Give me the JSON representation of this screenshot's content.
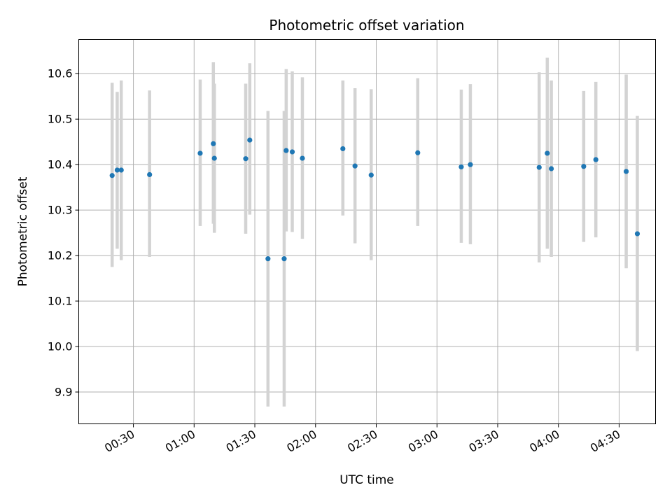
{
  "chart_data": {
    "type": "scatter",
    "title": "Photometric offset variation",
    "xlabel": "UTC time",
    "ylabel": "Photometric offset",
    "x_unit": "UTC time (HH:MM)",
    "xlim": [
      "00:03",
      "04:48"
    ],
    "ylim": [
      9.83,
      10.675
    ],
    "grid": true,
    "x_ticks": [
      "00:30",
      "01:00",
      "01:30",
      "02:00",
      "02:30",
      "03:00",
      "03:30",
      "04:00",
      "04:30"
    ],
    "y_ticks": [
      "9.9",
      "10.0",
      "10.1",
      "10.2",
      "10.3",
      "10.4",
      "10.5",
      "10.6"
    ],
    "colors": {
      "points": "#1f77b4",
      "error_bars": "#d3d3d3",
      "grid": "#b0b0b0"
    },
    "points": [
      {
        "t": "00:19:30",
        "y": 10.376,
        "lo": 10.175,
        "hi": 10.58
      },
      {
        "t": "00:22:00",
        "y": 10.388,
        "lo": 10.215,
        "hi": 10.56
      },
      {
        "t": "00:24:00",
        "y": 10.388,
        "lo": 10.19,
        "hi": 10.585
      },
      {
        "t": "00:38:00",
        "y": 10.378,
        "lo": 10.197,
        "hi": 10.563
      },
      {
        "t": "01:03:00",
        "y": 10.425,
        "lo": 10.265,
        "hi": 10.587
      },
      {
        "t": "01:09:30",
        "y": 10.446,
        "lo": 10.27,
        "hi": 10.625
      },
      {
        "t": "01:10:00",
        "y": 10.414,
        "lo": 10.25,
        "hi": 10.578
      },
      {
        "t": "01:25:30",
        "y": 10.413,
        "lo": 10.248,
        "hi": 10.578
      },
      {
        "t": "01:27:30",
        "y": 10.454,
        "lo": 10.29,
        "hi": 10.623
      },
      {
        "t": "01:36:30",
        "y": 10.193,
        "lo": 9.868,
        "hi": 10.518
      },
      {
        "t": "01:44:30",
        "y": 10.193,
        "lo": 9.868,
        "hi": 10.518
      },
      {
        "t": "01:45:30",
        "y": 10.431,
        "lo": 10.253,
        "hi": 10.61
      },
      {
        "t": "01:48:30",
        "y": 10.428,
        "lo": 10.252,
        "hi": 10.605
      },
      {
        "t": "01:53:30",
        "y": 10.414,
        "lo": 10.237,
        "hi": 10.592
      },
      {
        "t": "02:13:30",
        "y": 10.435,
        "lo": 10.288,
        "hi": 10.585
      },
      {
        "t": "02:19:30",
        "y": 10.397,
        "lo": 10.227,
        "hi": 10.568
      },
      {
        "t": "02:27:30",
        "y": 10.377,
        "lo": 10.19,
        "hi": 10.566
      },
      {
        "t": "02:50:30",
        "y": 10.426,
        "lo": 10.265,
        "hi": 10.59
      },
      {
        "t": "03:12:00",
        "y": 10.395,
        "lo": 10.228,
        "hi": 10.565
      },
      {
        "t": "03:16:30",
        "y": 10.4,
        "lo": 10.225,
        "hi": 10.577
      },
      {
        "t": "03:50:30",
        "y": 10.394,
        "lo": 10.185,
        "hi": 10.603
      },
      {
        "t": "03:54:30",
        "y": 10.425,
        "lo": 10.215,
        "hi": 10.635
      },
      {
        "t": "03:56:30",
        "y": 10.391,
        "lo": 10.197,
        "hi": 10.585
      },
      {
        "t": "04:12:30",
        "y": 10.396,
        "lo": 10.23,
        "hi": 10.562
      },
      {
        "t": "04:18:30",
        "y": 10.411,
        "lo": 10.24,
        "hi": 10.582
      },
      {
        "t": "04:33:30",
        "y": 10.385,
        "lo": 10.172,
        "hi": 10.598
      },
      {
        "t": "04:39:00",
        "y": 10.248,
        "lo": 9.99,
        "hi": 10.507
      }
    ]
  }
}
